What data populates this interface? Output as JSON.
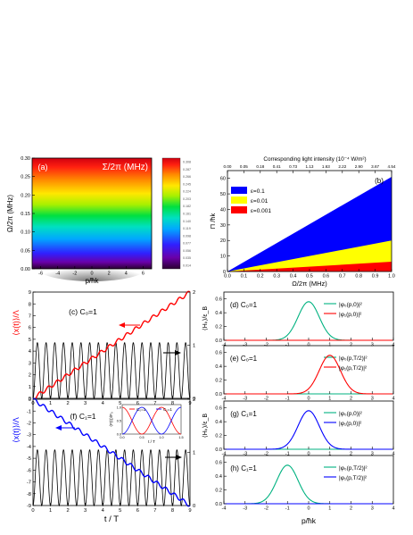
{
  "chart_data": [
    {
      "id": "a",
      "type": "heatmap",
      "panel_label": "(a)",
      "title": "Σ/2π (MHz)",
      "xlabel": "p/ħk",
      "ylabel": "Ω/2π (MHz)",
      "xlim": [
        -7,
        7
      ],
      "ylim": [
        0,
        0.3
      ],
      "xticks": [
        "-6",
        "-4",
        "-2",
        "0",
        "2",
        "4",
        "6"
      ],
      "yticks": [
        "0.00",
        "0.05",
        "0.10",
        "0.15",
        "0.20",
        "0.25",
        "0.30"
      ],
      "colorbar_ticks": [
        "0.308",
        "0.287",
        "0.266",
        "0.245",
        "0.224",
        "0.203",
        "0.182",
        "0.161",
        "0.140",
        "0.119",
        "0.098",
        "0.077",
        "0.056",
        "0.035",
        "0.014"
      ]
    },
    {
      "id": "b",
      "type": "area",
      "panel_label": "(b)",
      "top_axis_label": "Corresponding light intensity  (10⁻⁴ W/m²)",
      "top_ticks": [
        "0.00",
        "0.05",
        "0.18",
        "0.41",
        "0.73",
        "1.13",
        "1.63",
        "2.22",
        "2.90",
        "3.67",
        "4.54"
      ],
      "xlabel": "Ω/2π (MHz)",
      "ylabel": "Π /ħk",
      "xlim": [
        0,
        1
      ],
      "ylim": [
        0,
        65
      ],
      "xticks": [
        "0.0",
        "0.1",
        "0.2",
        "0.3",
        "0.4",
        "0.5",
        "0.6",
        "0.7",
        "0.8",
        "0.9",
        "1.0"
      ],
      "yticks": [
        "0",
        "10",
        "20",
        "30",
        "40",
        "50",
        "60"
      ],
      "series": [
        {
          "name": "ε=0.1",
          "color": "#0000ff",
          "slope": 61
        },
        {
          "name": "ε=0.01",
          "color": "#ffff00",
          "slope": 20
        },
        {
          "name": "ε=0.001",
          "color": "#ff0000",
          "slope": 6.3
        }
      ]
    },
    {
      "id": "c",
      "type": "line",
      "panel_label": "(c) C₀=1",
      "xlabel": "",
      "ylabel_left": "⟨x(t)⟩/Λ",
      "ylabel_right": "⟨Hₖ⟩/ε_B",
      "xlim": [
        0,
        9
      ],
      "ylim_left": [
        0,
        9
      ],
      "ylim_right": [
        0,
        2
      ],
      "xticks": [
        "0",
        "1",
        "2",
        "3",
        "4",
        "5",
        "6",
        "7",
        "8",
        "9"
      ],
      "yticks_left": [
        "0",
        "1",
        "2",
        "3",
        "4",
        "5",
        "6",
        "7",
        "8",
        "9"
      ],
      "yticks_right": [
        "0",
        "1",
        "2"
      ],
      "series": [
        {
          "name": "⟨x(t)⟩",
          "color": "#ff0000",
          "axis": "left",
          "drift": 1,
          "wiggle": 0.18
        },
        {
          "name": "⟨Hₖ⟩",
          "color": "#000000",
          "axis": "right",
          "peak": 1.05,
          "period": 0.5
        }
      ]
    },
    {
      "id": "f",
      "type": "line",
      "panel_label": "(f) C₁=1",
      "xlabel": "t / T",
      "ylabel_left": "⟨x(t)⟩/Λ",
      "ylabel_right": "⟨Hₖ⟩/ε_B",
      "xlim": [
        0,
        9
      ],
      "ylim_left": [
        -9,
        0
      ],
      "ylim_right": [
        0,
        2
      ],
      "xticks": [
        "0",
        "1",
        "2",
        "3",
        "4",
        "5",
        "6",
        "7",
        "8",
        "9"
      ],
      "yticks_left": [
        "0",
        "-1",
        "-2",
        "-3",
        "-4",
        "-5",
        "-6",
        "-7",
        "-8",
        "-9"
      ],
      "yticks_right": [
        "0",
        "1",
        "2"
      ],
      "series": [
        {
          "name": "⟨x(t)⟩",
          "color": "#0000ff",
          "axis": "left",
          "drift": -1,
          "wiggle": 0.18
        },
        {
          "name": "⟨Hₖ⟩",
          "color": "#000000",
          "axis": "right",
          "peak": 1.05,
          "period": 0.5
        }
      ],
      "inset": {
        "ylabel": "⟨F(t)⟩/F₀",
        "xlabel": "t / T",
        "xticks": [
          "0.0",
          "0.5",
          "1.0",
          "1.5"
        ],
        "yticks": [
          "0.0",
          "0.5",
          "1.0"
        ],
        "legend": [
          {
            "name": "C₀=1",
            "color": "#ff0000"
          },
          {
            "name": "C₁=1",
            "color": "#0000ff"
          }
        ]
      }
    },
    {
      "id": "d",
      "type": "line",
      "panel_label": "(d) C₀=1",
      "xlim": [
        -4,
        4
      ],
      "ylim": [
        0,
        0.7
      ],
      "xticks": [
        "-4",
        "-3",
        "-2",
        "-1",
        "0",
        "1",
        "2",
        "3",
        "4"
      ],
      "yticks": [
        "0.0",
        "0.2",
        "0.4",
        "0.6"
      ],
      "series": [
        {
          "name": "|φ₀(p,0)|²",
          "color": "#00b280",
          "center": 0,
          "peak": 0.56
        },
        {
          "name": "|φ₁(p,0)|²",
          "color": "#ff0000",
          "center": 0,
          "peak": 0
        }
      ]
    },
    {
      "id": "e",
      "type": "line",
      "panel_label": "(e) C₀=1",
      "xlim": [
        -4,
        4
      ],
      "ylim": [
        0,
        0.7
      ],
      "xticks": [
        "-4",
        "-3",
        "-2",
        "-1",
        "0",
        "1",
        "2",
        "3",
        "4"
      ],
      "yticks": [
        "0.0",
        "0.2",
        "0.4",
        "0.6"
      ],
      "series": [
        {
          "name": "|φ₀(p,T/2)|²",
          "color": "#00b280",
          "center": 1,
          "peak": 0
        },
        {
          "name": "|φ₁(p,T/2)|²",
          "color": "#ff0000",
          "center": 1,
          "peak": 0.56
        }
      ]
    },
    {
      "id": "g",
      "type": "line",
      "panel_label": "(g) C₁=1",
      "xlim": [
        -4,
        4
      ],
      "ylim": [
        0,
        0.7
      ],
      "xticks": [
        "-4",
        "-3",
        "-2",
        "-1",
        "0",
        "1",
        "2",
        "3",
        "4"
      ],
      "yticks": [
        "0.0",
        "0.2",
        "0.4",
        "0.6"
      ],
      "series": [
        {
          "name": "|φ₀(p,0)|²",
          "color": "#00b280",
          "center": 0,
          "peak": 0
        },
        {
          "name": "|φ₁(p,0)|²",
          "color": "#0000ff",
          "center": 0,
          "peak": 0.56
        }
      ]
    },
    {
      "id": "h",
      "type": "line",
      "panel_label": "(h) C₁=1",
      "xlabel": "p/ħk",
      "xlim": [
        -4,
        4
      ],
      "ylim": [
        0,
        0.7
      ],
      "xticks": [
        "-4",
        "-3",
        "-2",
        "-1",
        "0",
        "1",
        "2",
        "3",
        "4"
      ],
      "yticks": [
        "0.0",
        "0.2",
        "0.4",
        "0.6"
      ],
      "series": [
        {
          "name": "|φ₀(p,T/2)|²",
          "color": "#00b280",
          "center": -1,
          "peak": 0.56
        },
        {
          "name": "|φ₁(p,T/2)|²",
          "color": "#0000ff",
          "center": -1,
          "peak": 0
        }
      ]
    }
  ]
}
